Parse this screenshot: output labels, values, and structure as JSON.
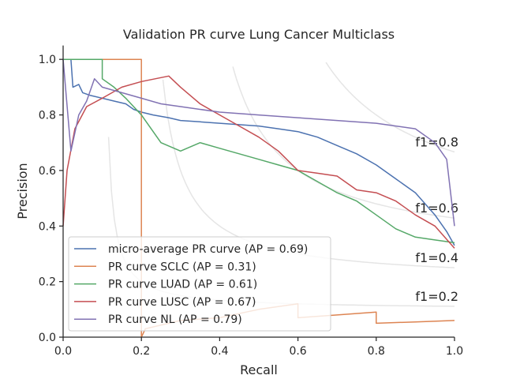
{
  "chart_data": {
    "type": "line",
    "title": "Validation PR curve Lung Cancer Multiclass",
    "xlabel": "Recall",
    "ylabel": "Precision",
    "xlim": [
      0.0,
      1.0
    ],
    "ylim": [
      0.0,
      1.05
    ],
    "xticks": [
      "0.0",
      "0.2",
      "0.4",
      "0.6",
      "0.8",
      "1.0"
    ],
    "yticks": [
      "0.0",
      "0.2",
      "0.4",
      "0.6",
      "0.8",
      "1.0"
    ],
    "grid": false,
    "legend_position": "lower-left",
    "iso_f1": [
      {
        "f1": 0.2,
        "label": "f1=0.2"
      },
      {
        "f1": 0.4,
        "label": "f1=0.4"
      },
      {
        "f1": 0.6,
        "label": "f1=0.6"
      },
      {
        "f1": 0.8,
        "label": "f1=0.8"
      }
    ],
    "series": [
      {
        "name": "micro-average PR curve (AP = 0.69)",
        "color": "#4c72b0",
        "points": [
          [
            0.0,
            1.0
          ],
          [
            0.02,
            1.0
          ],
          [
            0.025,
            0.9
          ],
          [
            0.04,
            0.91
          ],
          [
            0.05,
            0.88
          ],
          [
            0.07,
            0.87
          ],
          [
            0.1,
            0.86
          ],
          [
            0.13,
            0.85
          ],
          [
            0.16,
            0.84
          ],
          [
            0.18,
            0.82
          ],
          [
            0.2,
            0.81
          ],
          [
            0.23,
            0.8
          ],
          [
            0.27,
            0.79
          ],
          [
            0.3,
            0.78
          ],
          [
            0.35,
            0.775
          ],
          [
            0.4,
            0.77
          ],
          [
            0.45,
            0.765
          ],
          [
            0.5,
            0.76
          ],
          [
            0.55,
            0.75
          ],
          [
            0.6,
            0.74
          ],
          [
            0.65,
            0.72
          ],
          [
            0.7,
            0.69
          ],
          [
            0.75,
            0.66
          ],
          [
            0.8,
            0.62
          ],
          [
            0.85,
            0.57
          ],
          [
            0.9,
            0.52
          ],
          [
            0.95,
            0.44
          ],
          [
            0.98,
            0.38
          ],
          [
            1.0,
            0.33
          ]
        ]
      },
      {
        "name": "PR curve SCLC (AP = 0.31)",
        "color": "#dd8452",
        "points": [
          [
            0.0,
            1.0
          ],
          [
            0.2,
            1.0
          ],
          [
            0.2,
            0.0
          ],
          [
            0.21,
            0.03
          ],
          [
            0.3,
            0.06
          ],
          [
            0.4,
            0.07
          ],
          [
            0.5,
            0.1
          ],
          [
            0.6,
            0.12
          ],
          [
            0.6,
            0.07
          ],
          [
            0.7,
            0.08
          ],
          [
            0.8,
            0.09
          ],
          [
            0.8,
            0.05
          ],
          [
            0.9,
            0.055
          ],
          [
            1.0,
            0.06
          ]
        ]
      },
      {
        "name": "PR curve LUAD (AP = 0.61)",
        "color": "#55a868",
        "points": [
          [
            0.0,
            1.0
          ],
          [
            0.1,
            1.0
          ],
          [
            0.1,
            0.93
          ],
          [
            0.13,
            0.9
          ],
          [
            0.16,
            0.86
          ],
          [
            0.2,
            0.8
          ],
          [
            0.25,
            0.7
          ],
          [
            0.3,
            0.67
          ],
          [
            0.35,
            0.7
          ],
          [
            0.4,
            0.68
          ],
          [
            0.45,
            0.66
          ],
          [
            0.5,
            0.64
          ],
          [
            0.55,
            0.62
          ],
          [
            0.6,
            0.6
          ],
          [
            0.65,
            0.56
          ],
          [
            0.7,
            0.52
          ],
          [
            0.75,
            0.49
          ],
          [
            0.8,
            0.44
          ],
          [
            0.85,
            0.39
          ],
          [
            0.9,
            0.36
          ],
          [
            0.95,
            0.35
          ],
          [
            1.0,
            0.34
          ]
        ]
      },
      {
        "name": "PR curve LUSC (AP = 0.67)",
        "color": "#c44e52",
        "points": [
          [
            0.0,
            0.4
          ],
          [
            0.01,
            0.6
          ],
          [
            0.03,
            0.75
          ],
          [
            0.06,
            0.83
          ],
          [
            0.1,
            0.86
          ],
          [
            0.15,
            0.9
          ],
          [
            0.2,
            0.92
          ],
          [
            0.27,
            0.94
          ],
          [
            0.3,
            0.9
          ],
          [
            0.35,
            0.84
          ],
          [
            0.4,
            0.8
          ],
          [
            0.45,
            0.76
          ],
          [
            0.5,
            0.72
          ],
          [
            0.55,
            0.67
          ],
          [
            0.6,
            0.6
          ],
          [
            0.65,
            0.59
          ],
          [
            0.7,
            0.58
          ],
          [
            0.75,
            0.53
          ],
          [
            0.8,
            0.52
          ],
          [
            0.85,
            0.49
          ],
          [
            0.9,
            0.44
          ],
          [
            0.95,
            0.4
          ],
          [
            1.0,
            0.32
          ]
        ]
      },
      {
        "name": "PR curve NL (AP = 0.79)",
        "color": "#8172b3",
        "points": [
          [
            0.0,
            1.0
          ],
          [
            0.02,
            0.67
          ],
          [
            0.04,
            0.8
          ],
          [
            0.06,
            0.85
          ],
          [
            0.08,
            0.93
          ],
          [
            0.1,
            0.9
          ],
          [
            0.15,
            0.88
          ],
          [
            0.2,
            0.86
          ],
          [
            0.25,
            0.84
          ],
          [
            0.3,
            0.83
          ],
          [
            0.4,
            0.81
          ],
          [
            0.5,
            0.8
          ],
          [
            0.6,
            0.79
          ],
          [
            0.7,
            0.78
          ],
          [
            0.8,
            0.77
          ],
          [
            0.85,
            0.76
          ],
          [
            0.9,
            0.75
          ],
          [
            0.95,
            0.7
          ],
          [
            0.98,
            0.64
          ],
          [
            1.0,
            0.4
          ]
        ]
      }
    ]
  }
}
